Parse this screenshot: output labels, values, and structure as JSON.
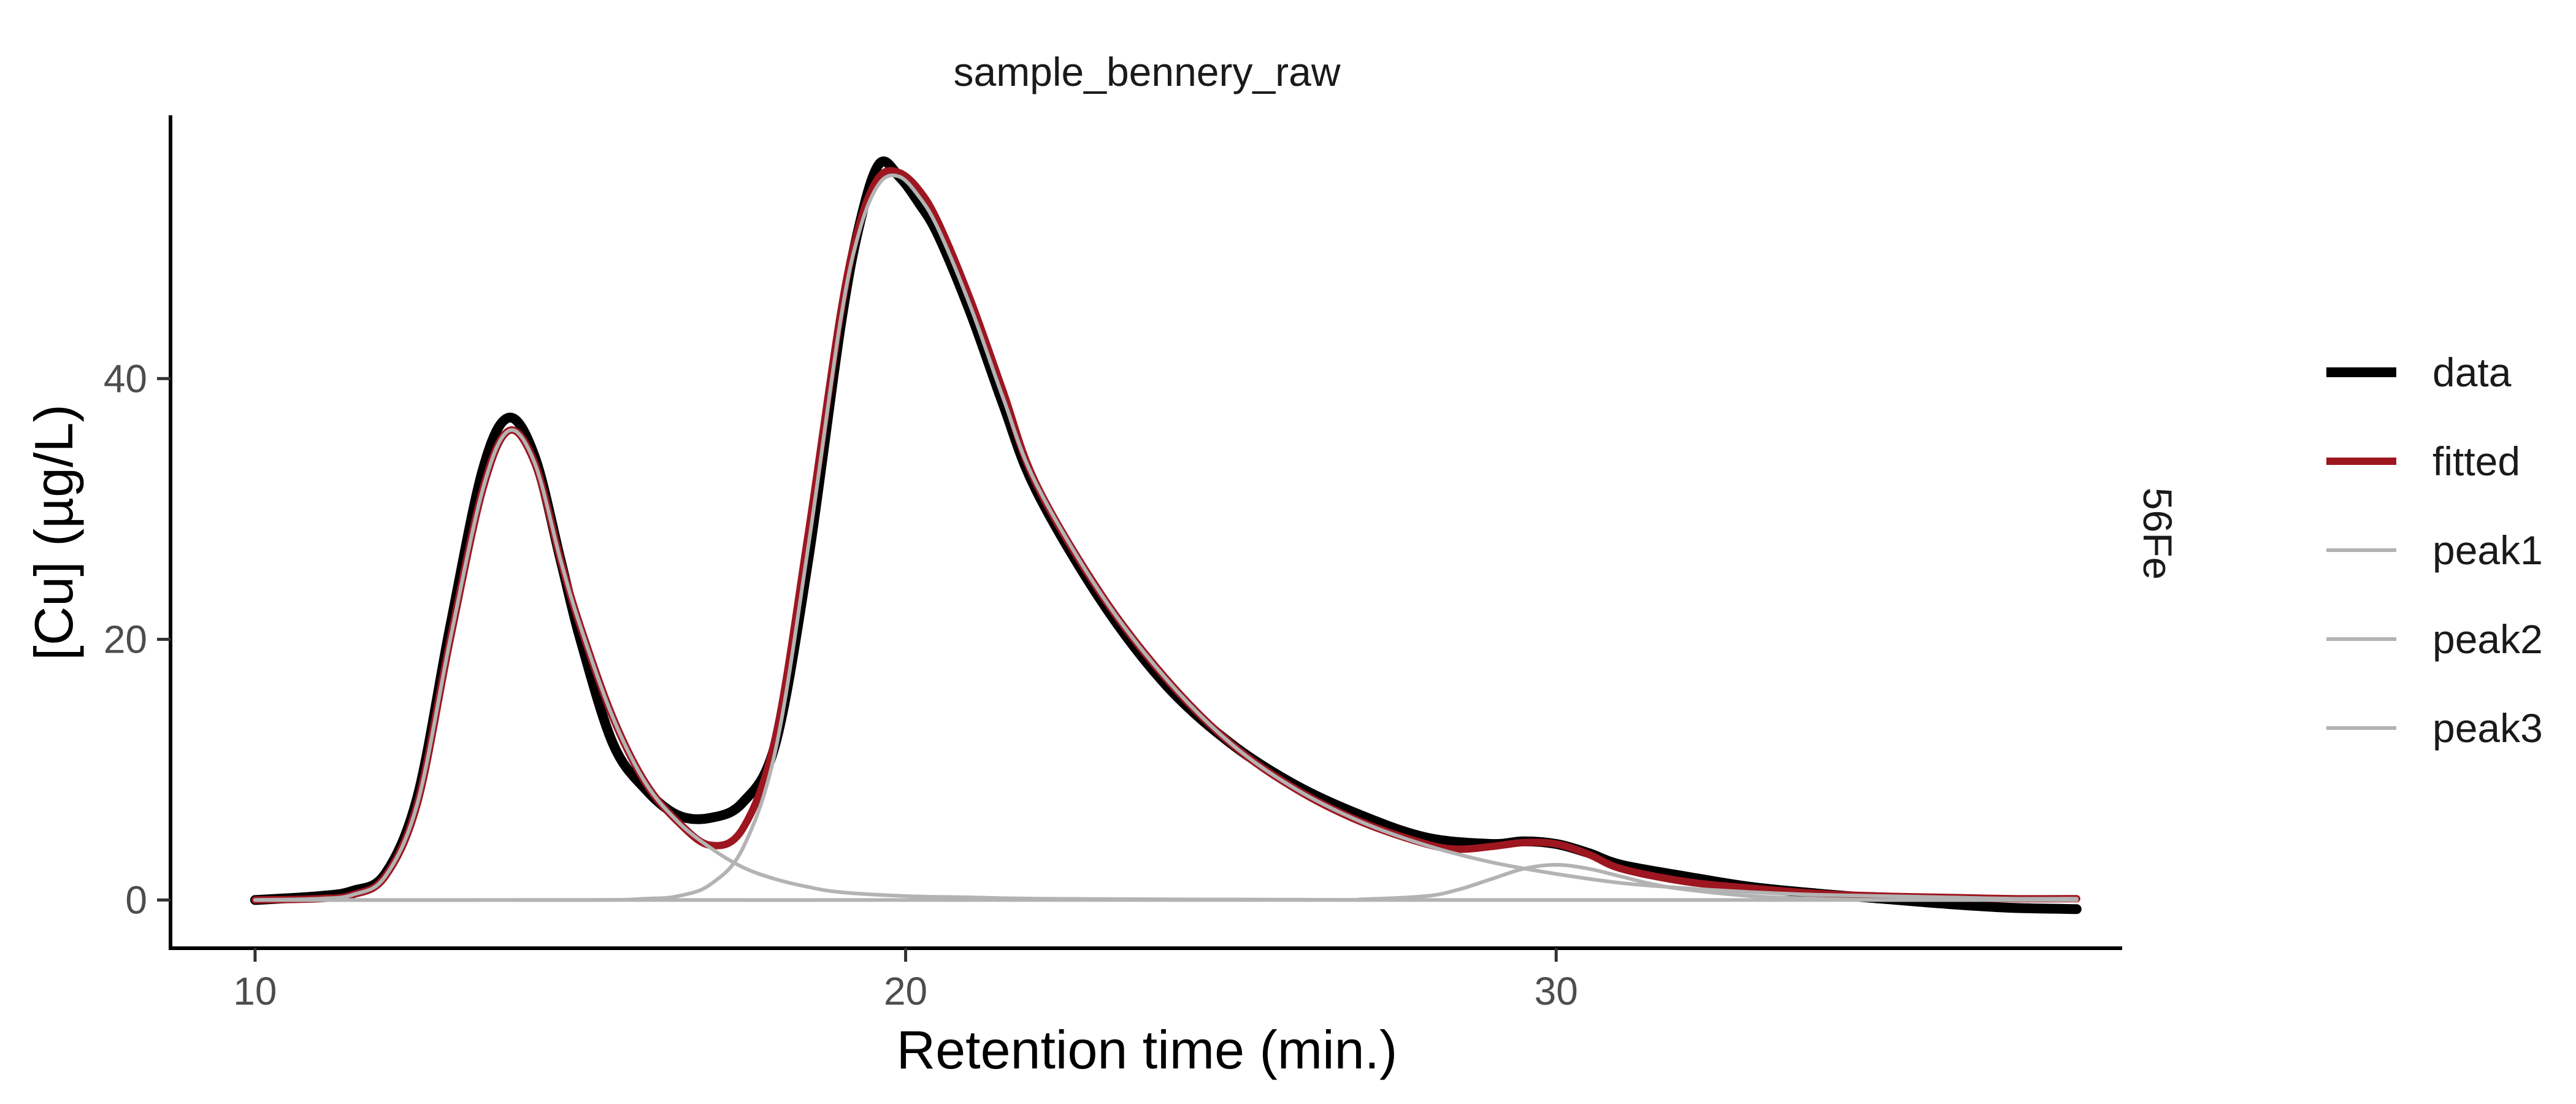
{
  "chart_data": {
    "type": "line",
    "title": "sample_bennery_raw",
    "strip_label": "56Fe",
    "xlabel": "Retention time (min.)",
    "ylabel": "[Cu] (µg/L)",
    "xlim": [
      8.7,
      38.7
    ],
    "ylim": [
      -3.7,
      60.2
    ],
    "x_ticks": [
      10,
      20,
      30
    ],
    "y_ticks": [
      0,
      20,
      40
    ],
    "grid": false,
    "legend_position": "right",
    "colors": {
      "data": "#000000",
      "fitted": "#9e1620",
      "peaks": "#b3b3b3"
    },
    "series": [
      {
        "name": "data",
        "x": [
          10.0,
          11.0,
          11.5,
          12.0,
          12.5,
          13.0,
          13.5,
          13.9,
          14.3,
          14.7,
          15.0,
          15.5,
          16.0,
          16.5,
          17.0,
          17.5,
          18.0,
          18.5,
          19.0,
          19.3,
          19.6,
          19.9,
          20.2,
          20.5,
          21.0,
          21.5,
          22.0,
          23.0,
          24.0,
          25.0,
          26.0,
          27.0,
          28.0,
          29.0,
          29.5,
          30.0,
          30.5,
          31.0,
          32.0,
          33.0,
          34.0,
          35.0,
          36.0,
          37.0,
          38.0
        ],
        "y": [
          0.0,
          0.3,
          0.7,
          2.0,
          8.0,
          21.0,
          33.0,
          37.0,
          34.0,
          26.0,
          20.0,
          12.0,
          8.5,
          6.5,
          6.3,
          7.5,
          12.0,
          26.0,
          44.0,
          52.0,
          56.5,
          55.5,
          53.5,
          51.0,
          45.0,
          38.0,
          31.5,
          23.0,
          16.5,
          12.0,
          8.8,
          6.5,
          4.8,
          4.3,
          4.5,
          4.3,
          3.6,
          2.7,
          1.8,
          1.0,
          0.5,
          0.1,
          -0.3,
          -0.6,
          -0.7
        ]
      },
      {
        "name": "fitted",
        "x": [
          10.0,
          11.0,
          11.5,
          12.0,
          12.5,
          13.0,
          13.5,
          13.9,
          14.3,
          14.7,
          15.0,
          15.5,
          16.0,
          16.5,
          17.0,
          17.5,
          18.0,
          18.5,
          19.0,
          19.3,
          19.6,
          19.9,
          20.2,
          20.5,
          21.0,
          21.5,
          22.0,
          23.0,
          24.0,
          25.0,
          26.0,
          27.0,
          28.0,
          28.5,
          29.0,
          29.5,
          30.0,
          30.5,
          31.0,
          32.0,
          33.0,
          34.0,
          35.0,
          36.0,
          37.0,
          38.0
        ],
        "y": [
          0.0,
          0.1,
          0.4,
          1.8,
          7.5,
          20.0,
          31.5,
          36.0,
          33.5,
          26.0,
          21.0,
          14.0,
          9.0,
          6.0,
          4.2,
          5.5,
          12.5,
          28.0,
          45.0,
          52.0,
          55.5,
          55.8,
          54.5,
          52.0,
          46.0,
          39.0,
          32.0,
          23.5,
          17.0,
          12.0,
          8.5,
          6.0,
          4.3,
          3.9,
          4.1,
          4.4,
          4.3,
          3.5,
          2.4,
          1.4,
          0.9,
          0.5,
          0.3,
          0.2,
          0.1,
          0.1
        ]
      },
      {
        "name": "peak1",
        "x": [
          10.0,
          11.0,
          11.5,
          12.0,
          12.5,
          13.0,
          13.5,
          13.9,
          14.3,
          14.7,
          15.0,
          15.5,
          16.0,
          16.5,
          17.0,
          17.5,
          18.0,
          18.5,
          19.0,
          20.0,
          21.0,
          22.0,
          24.0,
          26.0,
          28.0,
          30.0,
          32.0,
          34.0,
          36.0,
          38.0
        ],
        "y": [
          0.0,
          0.1,
          0.4,
          1.8,
          7.5,
          20.0,
          31.5,
          36.0,
          33.5,
          26.0,
          21.0,
          14.0,
          9.0,
          6.0,
          4.0,
          2.5,
          1.6,
          1.0,
          0.6,
          0.3,
          0.2,
          0.1,
          0.05,
          0.02,
          0.0,
          0.0,
          0.0,
          0.0,
          0.0,
          0.0
        ]
      },
      {
        "name": "peak2",
        "x": [
          10.0,
          15.0,
          16.0,
          16.5,
          17.0,
          17.5,
          18.0,
          18.5,
          19.0,
          19.3,
          19.6,
          19.9,
          20.2,
          20.5,
          21.0,
          21.5,
          22.0,
          23.0,
          24.0,
          25.0,
          26.0,
          27.0,
          28.0,
          29.0,
          30.0,
          31.0,
          32.0,
          33.0,
          34.0,
          35.0,
          36.0,
          37.0,
          38.0
        ],
        "y": [
          0.0,
          0.0,
          0.1,
          0.3,
          1.2,
          4.0,
          11.5,
          27.0,
          44.5,
          51.5,
          55.0,
          55.5,
          54.0,
          51.5,
          45.5,
          38.5,
          32.0,
          23.5,
          17.0,
          12.0,
          8.5,
          6.0,
          4.2,
          2.9,
          2.0,
          1.3,
          0.9,
          0.6,
          0.4,
          0.3,
          0.2,
          0.1,
          0.1
        ]
      },
      {
        "name": "peak3",
        "x": [
          10.0,
          26.0,
          27.0,
          28.0,
          28.5,
          29.0,
          29.5,
          30.0,
          30.5,
          31.0,
          31.5,
          32.0,
          33.0,
          34.0,
          35.0,
          36.0,
          38.0
        ],
        "y": [
          0.0,
          0.0,
          0.05,
          0.3,
          0.8,
          1.6,
          2.4,
          2.7,
          2.4,
          1.8,
          1.2,
          0.8,
          0.3,
          0.1,
          0.0,
          0.0,
          0.0
        ]
      }
    ]
  }
}
